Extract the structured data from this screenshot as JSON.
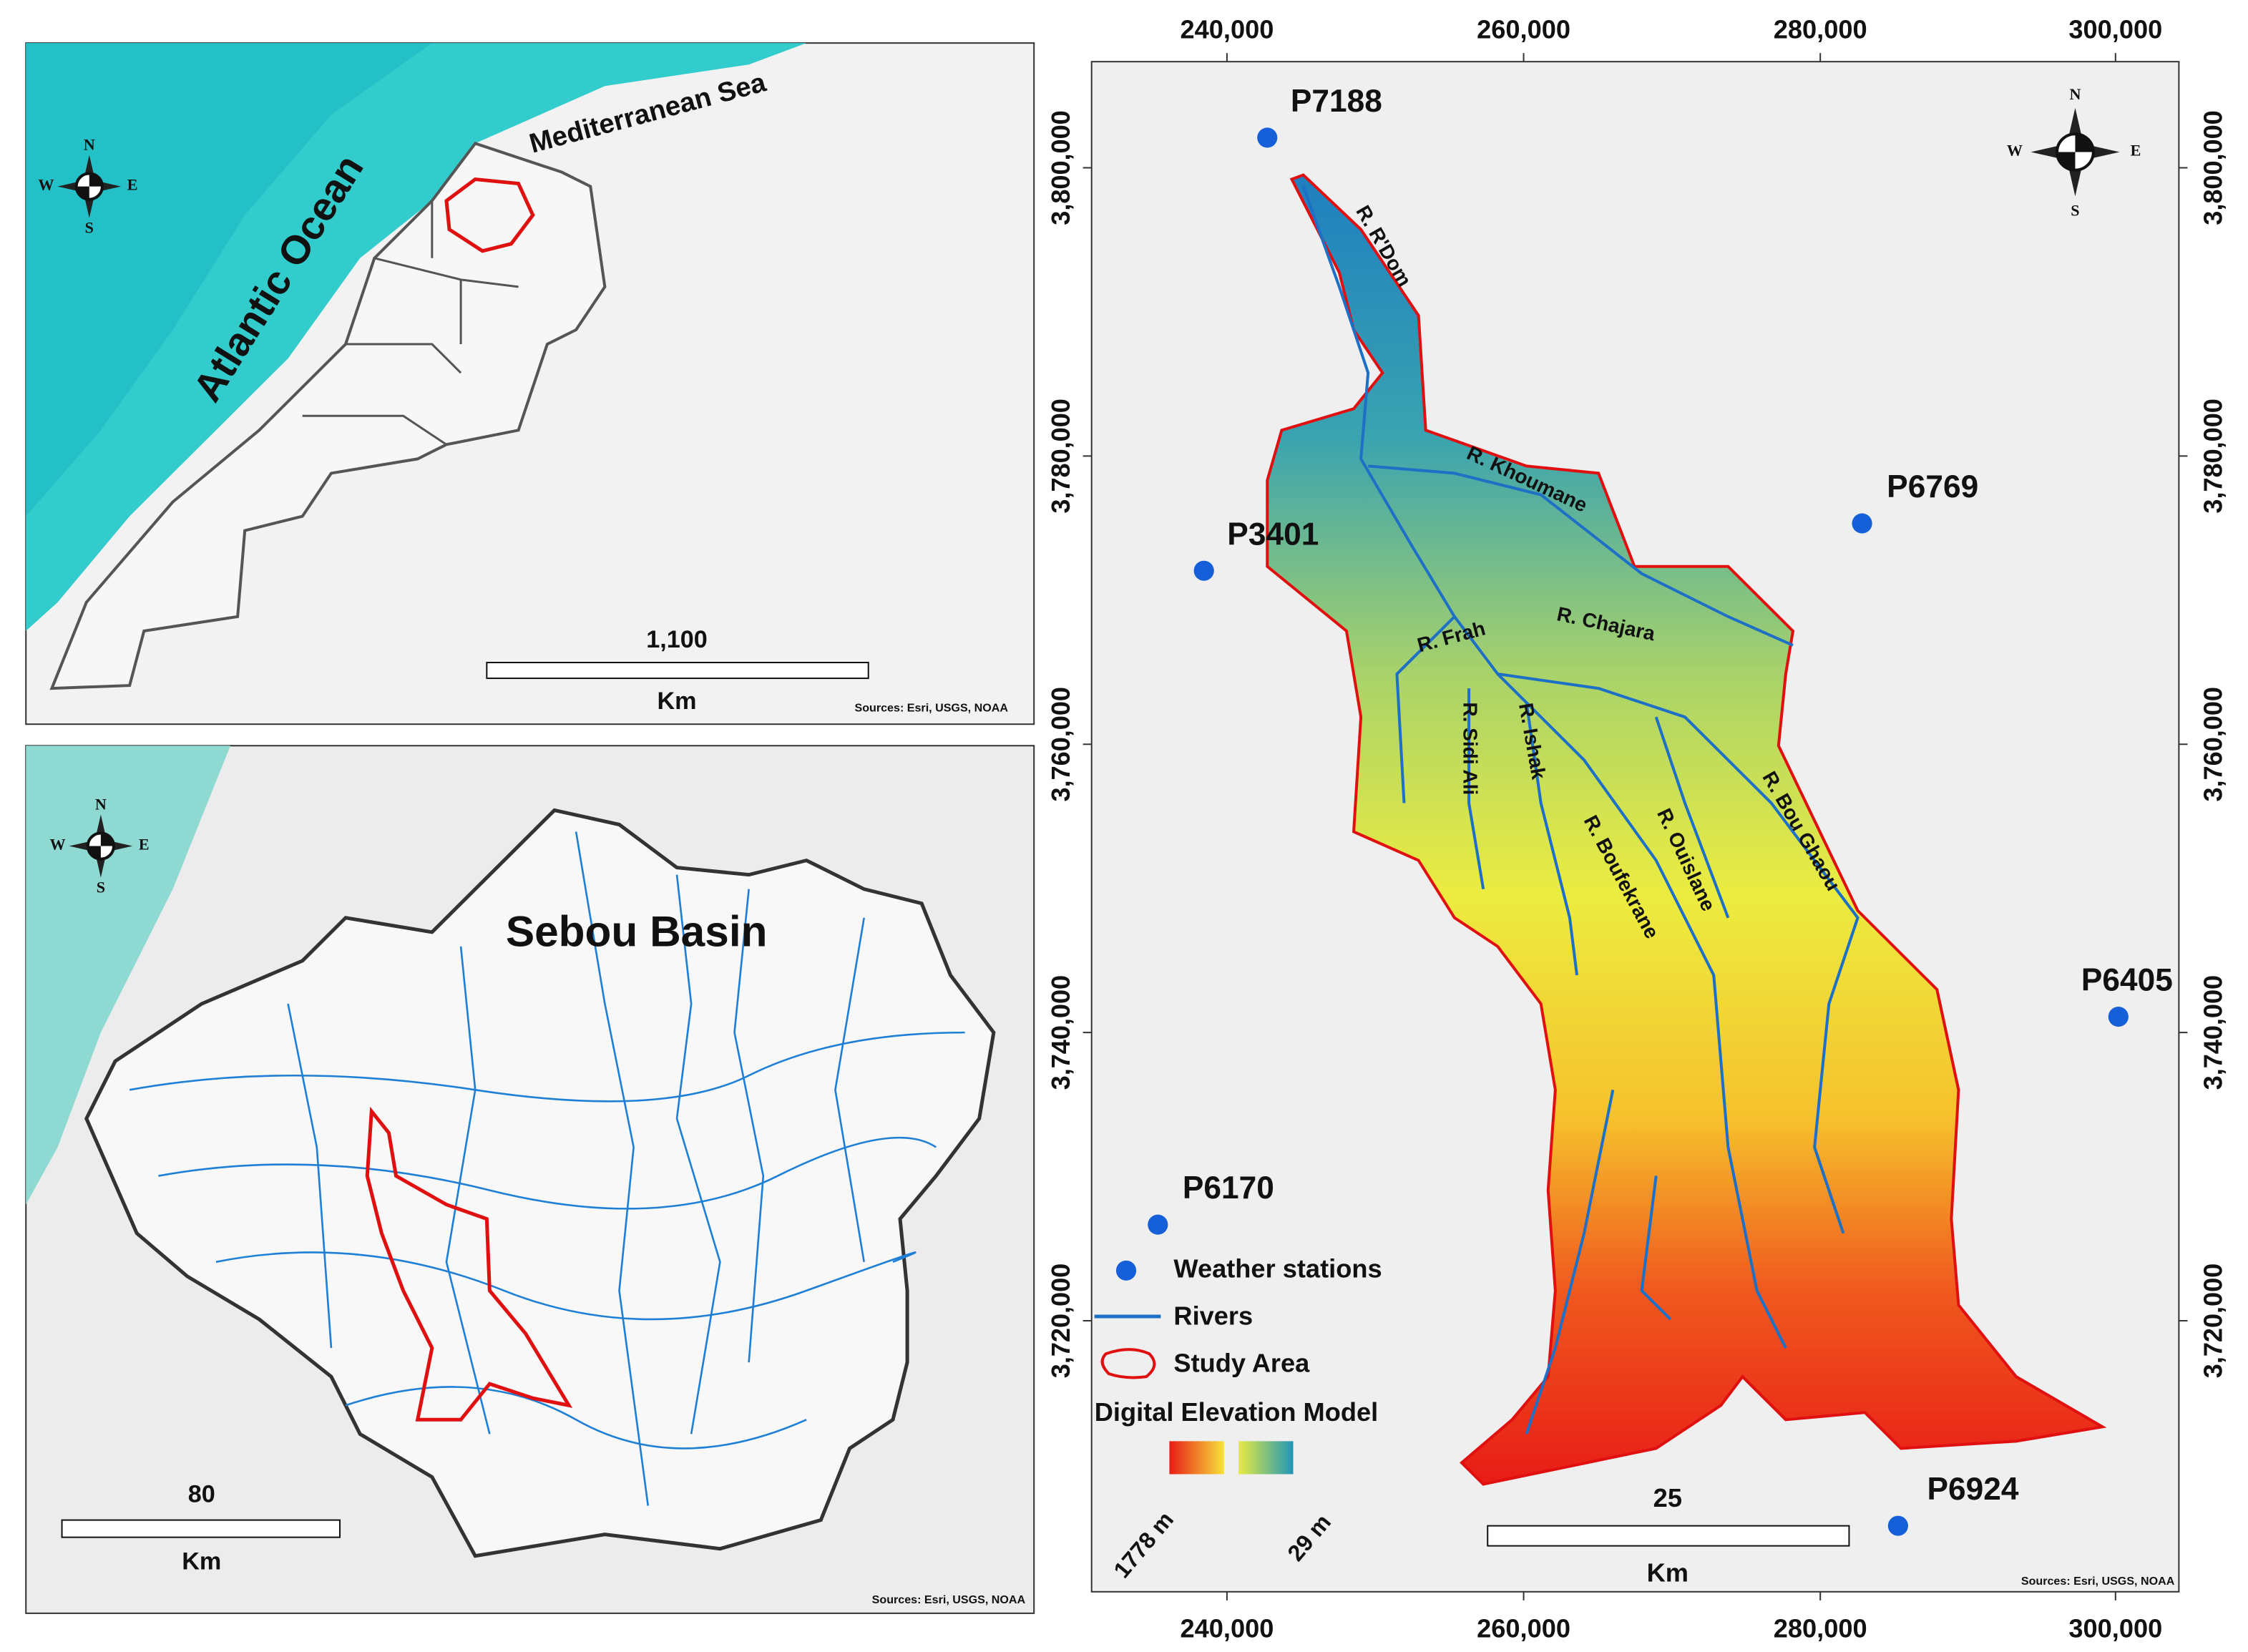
{
  "compass": {
    "n": "N",
    "s": "S",
    "w": "W",
    "e": "E"
  },
  "overview_map": {
    "labels": {
      "sea": "Mediterranean Sea",
      "ocean": "Atlantic Ocean"
    },
    "scale_bar": {
      "distance": "1,100",
      "unit": "Km"
    },
    "sources": "Sources: Esri, USGS, NOAA"
  },
  "basin_map": {
    "title": "Sebou Basin",
    "scale_bar": {
      "distance": "80",
      "unit": "Km"
    },
    "sources": "Sources: Esri, USGS, NOAA"
  },
  "main_map": {
    "x_ticks": [
      "240,000",
      "260,000",
      "280,000",
      "300,000"
    ],
    "y_ticks": [
      "3,720,000",
      "3,740,000",
      "3,760,000",
      "3,780,000",
      "3,800,000"
    ],
    "stations": [
      "P7188",
      "P3401",
      "P6769",
      "P6405",
      "P6170",
      "P6924"
    ],
    "rivers": [
      "R. R'Dom",
      "R. Khoumane",
      "R. Chajara",
      "R. Frah",
      "R. Sidi Ali",
      "R. Ishak",
      "R. Boufekrane",
      "R. Ouislane",
      "R. Bou Ghaou"
    ],
    "legend": {
      "items": [
        "Weather stations",
        "Rivers",
        "Study Area"
      ],
      "dem_title": "Digital Elevation Model",
      "dem_high": "1778 m",
      "dem_low": "29 m"
    },
    "scale_bar": {
      "distance": "25",
      "unit": "Km"
    },
    "sources": "Sources: Esri, USGS, NOAA"
  }
}
